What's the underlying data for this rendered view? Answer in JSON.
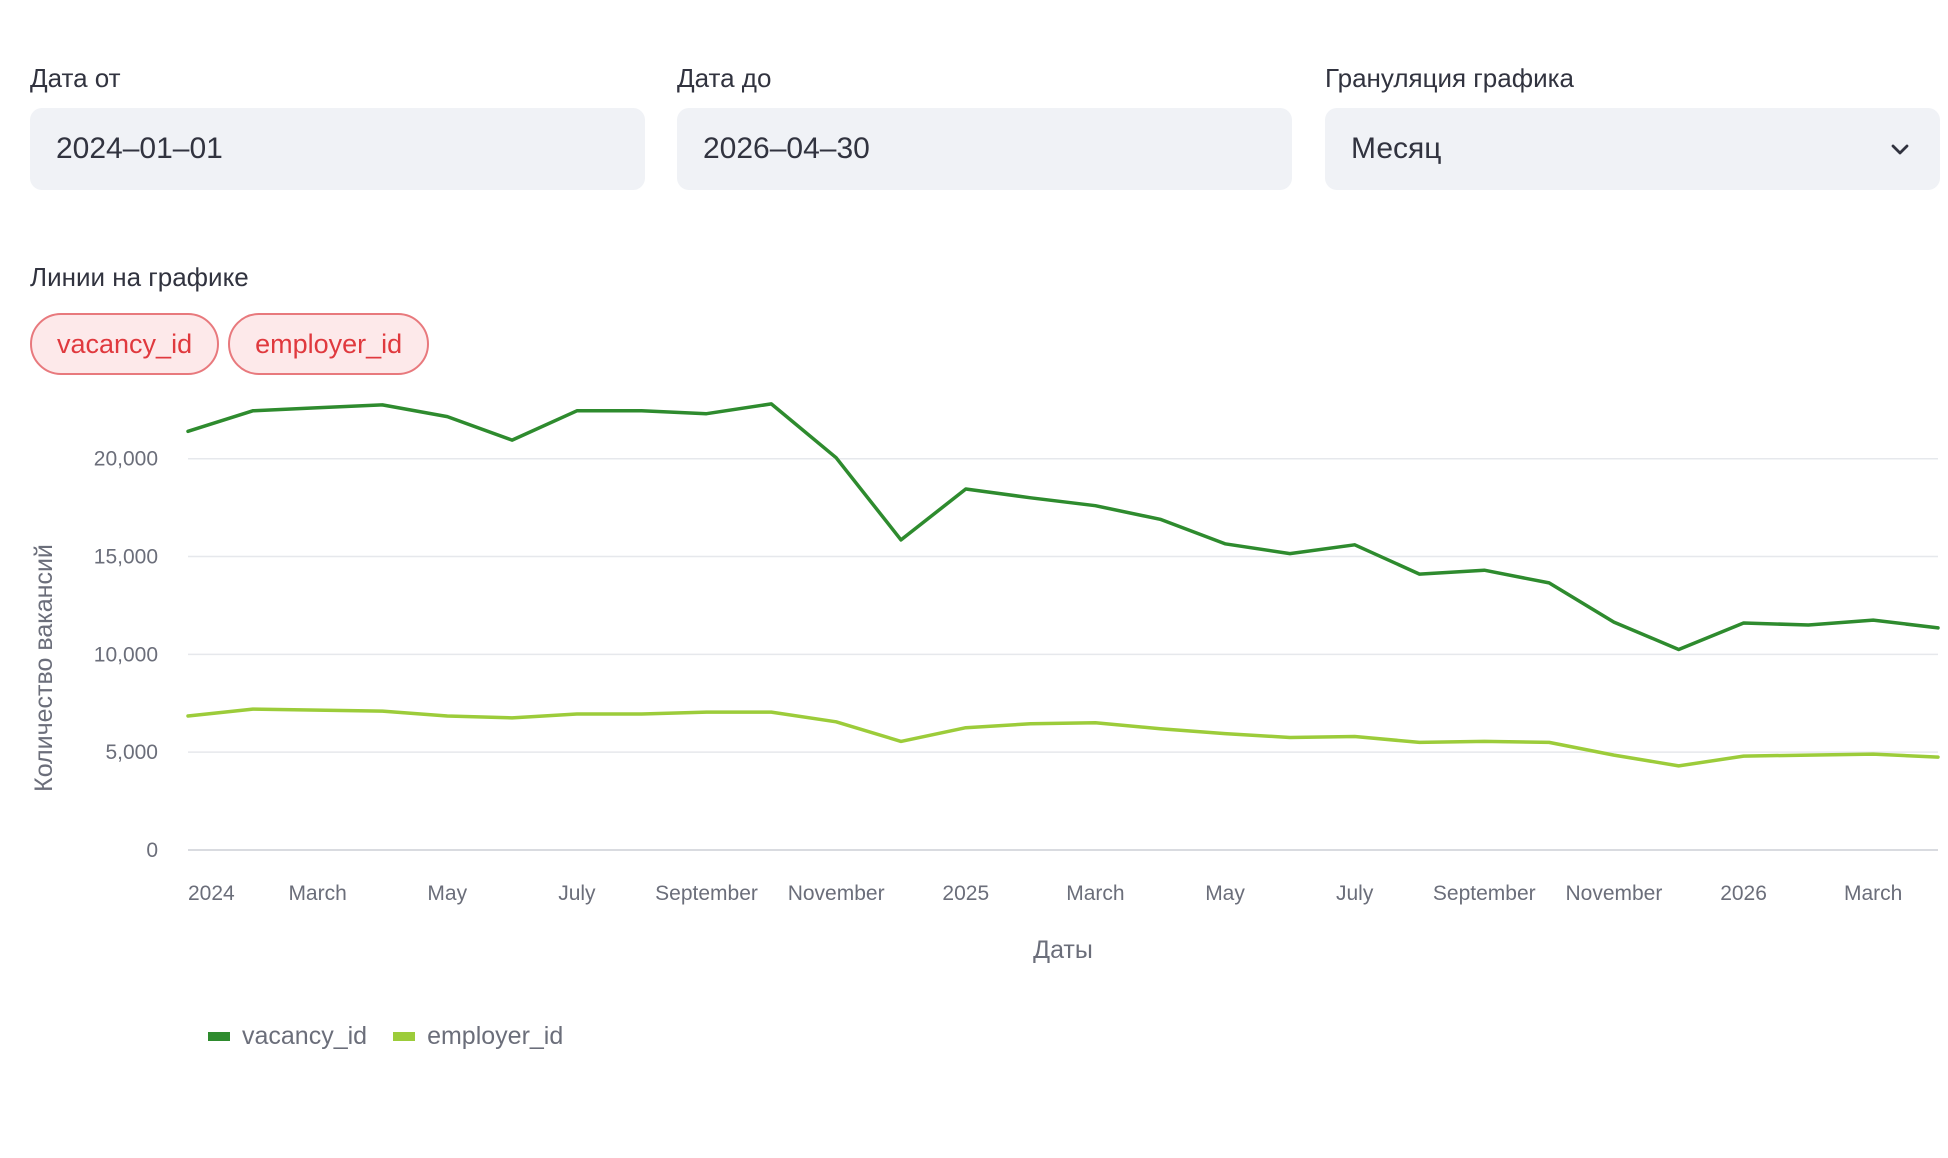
{
  "filters": {
    "date_from": {
      "label": "Дата от",
      "value": "2024–01–01"
    },
    "date_to": {
      "label": "Дата до",
      "value": "2026–04–30"
    },
    "granularity": {
      "label": "Грануляция графика",
      "value": "Месяц",
      "icon": "chevron-down-icon"
    }
  },
  "lines_selector": {
    "label": "Линии на графике",
    "chips": [
      "vacancy_id",
      "employer_id"
    ]
  },
  "colors": {
    "vacancy_id": "#2e8b2e",
    "employer_id": "#9ccc3a",
    "chip_text": "#e0393e"
  },
  "chart_data": {
    "type": "line",
    "xlabel": "Даты",
    "ylabel": "Количество вакансий",
    "ylim": [
      0,
      23000
    ],
    "yticks": [
      "0",
      "5,000",
      "10,000",
      "15,000",
      "20,000"
    ],
    "ytick_values": [
      0,
      5000,
      10000,
      15000,
      20000
    ],
    "x": [
      "2024-01",
      "2024-02",
      "2024-03",
      "2024-04",
      "2024-05",
      "2024-06",
      "2024-07",
      "2024-08",
      "2024-09",
      "2024-10",
      "2024-11",
      "2024-12",
      "2025-01",
      "2025-02",
      "2025-03",
      "2025-04",
      "2025-05",
      "2025-06",
      "2025-07",
      "2025-08",
      "2025-09",
      "2025-10",
      "2025-11",
      "2025-12",
      "2026-01",
      "2026-02",
      "2026-03",
      "2026-04"
    ],
    "xtick_labels": [
      {
        "at": "2024-01",
        "label": "2024"
      },
      {
        "at": "2024-03",
        "label": "March"
      },
      {
        "at": "2024-05",
        "label": "May"
      },
      {
        "at": "2024-07",
        "label": "July"
      },
      {
        "at": "2024-09",
        "label": "September"
      },
      {
        "at": "2024-11",
        "label": "November"
      },
      {
        "at": "2025-01",
        "label": "2025"
      },
      {
        "at": "2025-03",
        "label": "March"
      },
      {
        "at": "2025-05",
        "label": "May"
      },
      {
        "at": "2025-07",
        "label": "July"
      },
      {
        "at": "2025-09",
        "label": "September"
      },
      {
        "at": "2025-11",
        "label": "November"
      },
      {
        "at": "2026-01",
        "label": "2026"
      },
      {
        "at": "2026-03",
        "label": "March"
      }
    ],
    "series": [
      {
        "name": "vacancy_id",
        "values": [
          21400,
          22450,
          22600,
          22750,
          22150,
          20950,
          22450,
          22450,
          22300,
          22800,
          20050,
          15850,
          18450,
          18000,
          17600,
          16900,
          15650,
          15150,
          15600,
          14100,
          14300,
          13650,
          11650,
          10250,
          11600,
          11500,
          11750,
          11350
        ]
      },
      {
        "name": "employer_id",
        "values": [
          6850,
          7200,
          7150,
          7100,
          6850,
          6750,
          6950,
          6950,
          7050,
          7050,
          6550,
          5550,
          6250,
          6450,
          6500,
          6200,
          5950,
          5750,
          5800,
          5500,
          5550,
          5500,
          4850,
          4300,
          4800,
          4850,
          4900,
          4750
        ]
      }
    ],
    "legend": "bottom-left",
    "grid": true
  }
}
